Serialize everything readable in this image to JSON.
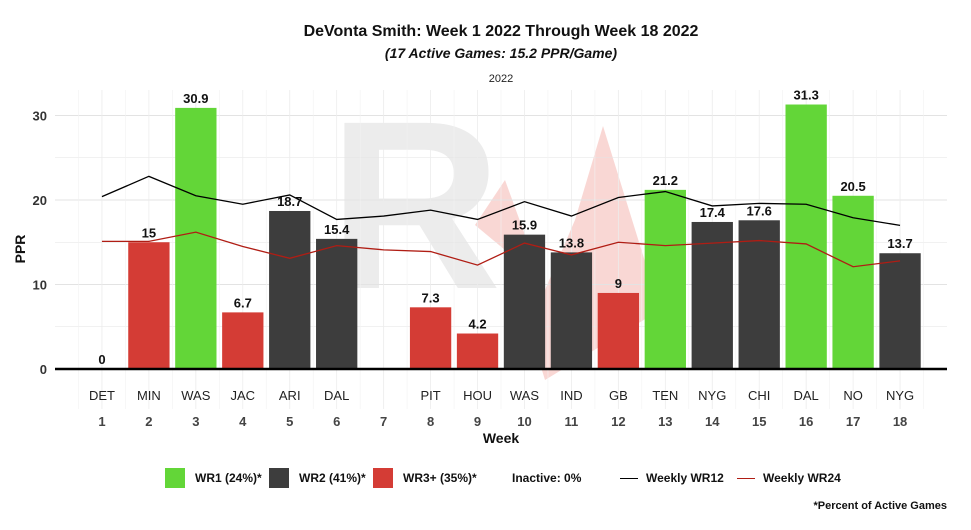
{
  "title": "DeVonta Smith: Week 1 2022 Through Week 18 2022",
  "subtitle": "(17 Active Games: 15.2 PPR/Game)",
  "facet_label": "2022",
  "footnote": "*Percent of Active Games",
  "colors": {
    "wr1": "#63d638",
    "wr2": "#3d3d3d",
    "wr3": "#d43c35",
    "wr12_line": "#000000",
    "wr24_line": "#b01d14",
    "watermark_gray": "#ececec",
    "watermark_red": "#f7c9c6"
  },
  "legend": {
    "wr1": "WR1 (24%)*",
    "wr2": "WR2 (41%)*",
    "wr3": "WR3+ (35%)*",
    "inactive": "Inactive: 0%",
    "wr12": "Weekly WR12",
    "wr24": "Weekly WR24"
  },
  "chart_data": {
    "type": "bar",
    "title": "DeVonta Smith: Week 1 2022 Through Week 18 2022",
    "subtitle": "(17 Active Games: 15.2 PPR/Game)",
    "xlabel": "Week",
    "ylabel": "PPR",
    "ylim": [
      -3.5,
      33
    ],
    "yticks": [
      0,
      10,
      20,
      30
    ],
    "grid": true,
    "legend_position": "bottom",
    "weeks": [
      1,
      2,
      3,
      4,
      5,
      6,
      7,
      8,
      9,
      10,
      11,
      12,
      13,
      14,
      15,
      16,
      17,
      18
    ],
    "opponents": [
      "DET",
      "MIN",
      "WAS",
      "JAC",
      "ARI",
      "DAL",
      "",
      "PIT",
      "HOU",
      "WAS",
      "IND",
      "GB",
      "TEN",
      "NYG",
      "CHI",
      "DAL",
      "NO",
      "NYG"
    ],
    "values": [
      0,
      15,
      30.9,
      6.7,
      18.7,
      15.4,
      null,
      7.3,
      4.2,
      15.9,
      13.8,
      9,
      21.2,
      17.4,
      17.6,
      31.3,
      20.5,
      13.7
    ],
    "value_labels": [
      "0",
      "15",
      "30.9",
      "6.7",
      "18.7",
      "15.4",
      "",
      "7.3",
      "4.2",
      "15.9",
      "13.8",
      "9",
      "21.2",
      "17.4",
      "17.6",
      "31.3",
      "20.5",
      "13.7"
    ],
    "tiers": [
      "WR3",
      "WR3",
      "WR1",
      "WR3",
      "WR2",
      "WR2",
      null,
      "WR3",
      "WR3",
      "WR2",
      "WR2",
      "WR3",
      "WR1",
      "WR2",
      "WR2",
      "WR1",
      "WR1",
      "WR2"
    ],
    "series": [
      {
        "name": "Weekly WR12",
        "values": [
          20.4,
          22.8,
          20.5,
          19.5,
          20.6,
          17.7,
          18.1,
          18.8,
          17.7,
          19.8,
          18.1,
          20.3,
          21.0,
          19.3,
          19.6,
          19.5,
          17.9,
          17.0
        ]
      },
      {
        "name": "Weekly WR24",
        "values": [
          15.1,
          15.1,
          16.2,
          14.5,
          13.1,
          14.6,
          14.1,
          13.9,
          12.3,
          14.9,
          13.5,
          15.0,
          14.6,
          14.9,
          15.2,
          14.8,
          12.1,
          12.8
        ]
      }
    ]
  }
}
